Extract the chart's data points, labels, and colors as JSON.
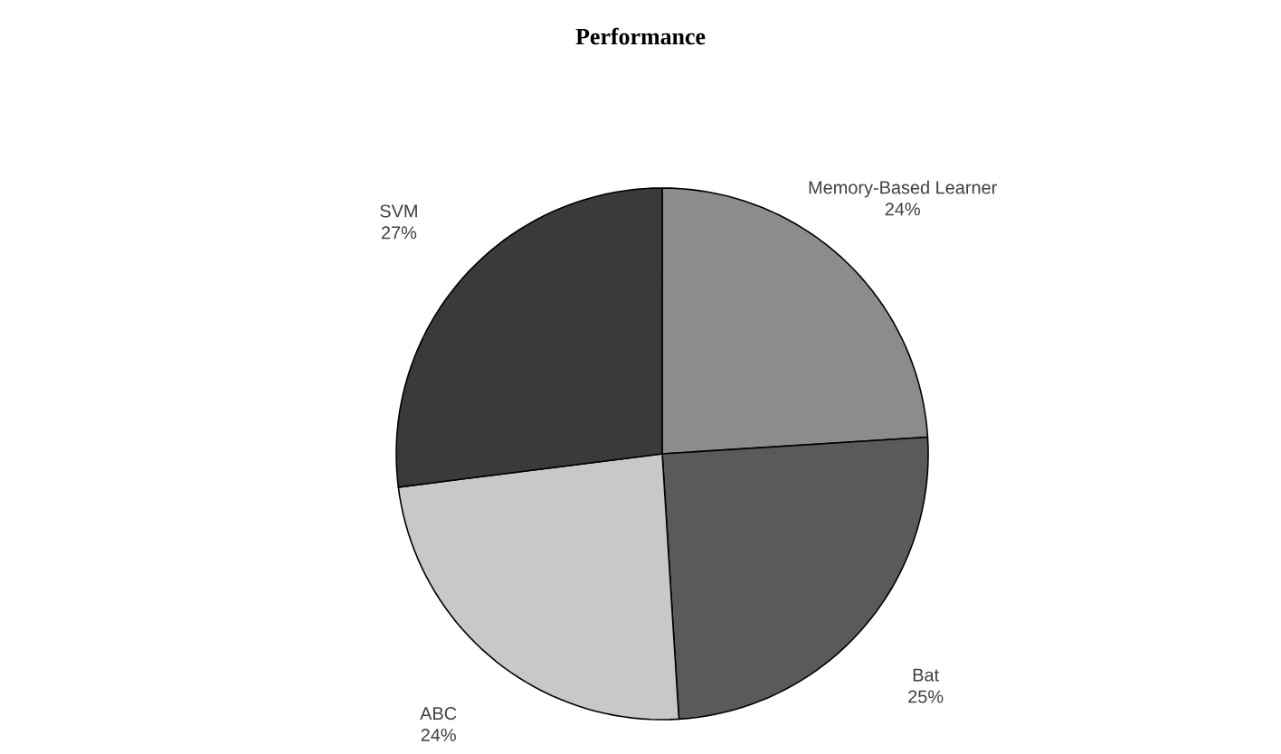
{
  "chart_data": {
    "type": "pie",
    "title": "Performance",
    "categories": [
      "Memory-Based Learner",
      "Bat",
      "ABC",
      "SVM"
    ],
    "values": [
      24,
      25,
      24,
      27
    ],
    "value_labels": [
      "24%",
      "25%",
      "24%",
      "27%"
    ],
    "colors": [
      "#8c8c8c",
      "#5a5a5a",
      "#c8c8c8",
      "#3a3a3a"
    ]
  }
}
